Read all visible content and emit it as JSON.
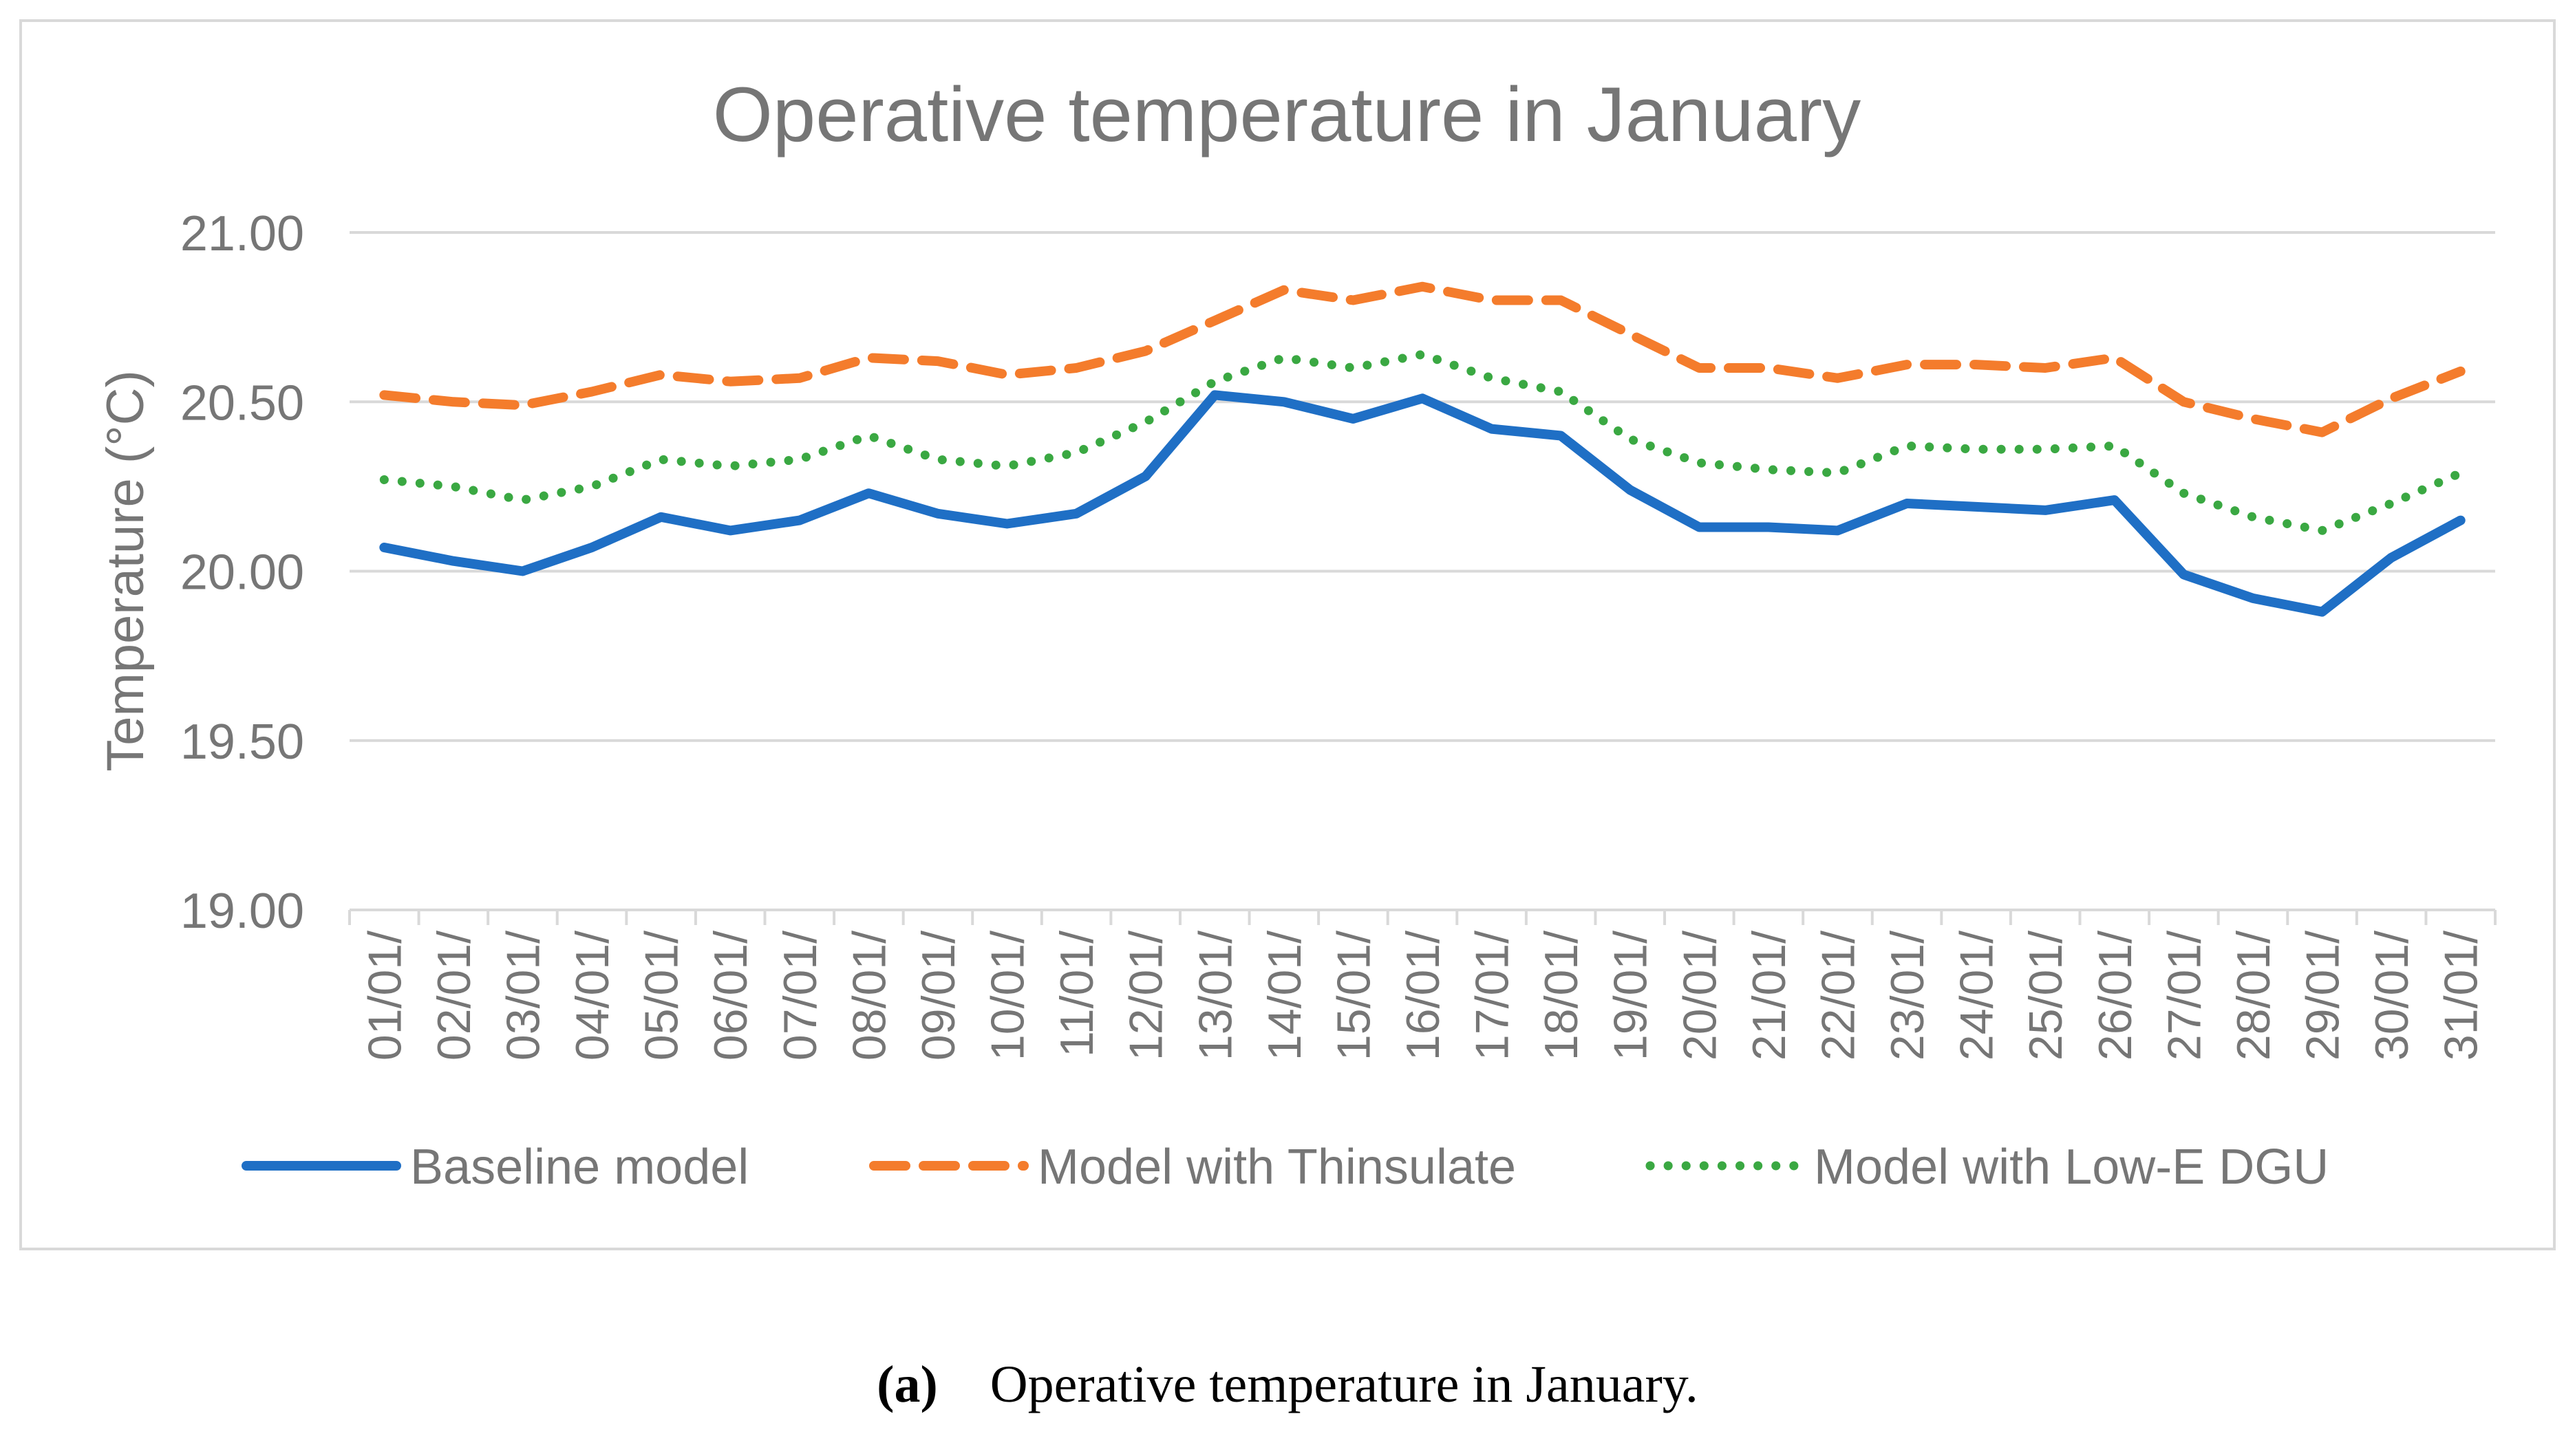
{
  "chart_data": {
    "type": "line",
    "title": "Operative temperature in January",
    "xlabel": "",
    "ylabel": "Temperature (°C)",
    "ylim": [
      19.0,
      21.0
    ],
    "yticks": [
      "19.00",
      "19.50",
      "20.00",
      "20.50",
      "21.00"
    ],
    "ytick_values": [
      19.0,
      19.5,
      20.0,
      20.5,
      21.0
    ],
    "grid": true,
    "legend_position": "bottom",
    "categories": [
      "01/01/",
      "02/01/",
      "03/01/",
      "04/01/",
      "05/01/",
      "06/01/",
      "07/01/",
      "08/01/",
      "09/01/",
      "10/01/",
      "11/01/",
      "12/01/",
      "13/01/",
      "14/01/",
      "15/01/",
      "16/01/",
      "17/01/",
      "18/01/",
      "19/01/",
      "20/01/",
      "21/01/",
      "22/01/",
      "23/01/",
      "24/01/",
      "25/01/",
      "26/01/",
      "27/01/",
      "28/01/",
      "29/01/",
      "30/01/",
      "31/01/"
    ],
    "series": [
      {
        "name": "Baseline model",
        "color": "#1f6fc5",
        "style": "solid",
        "values": [
          20.07,
          20.03,
          20.0,
          20.07,
          20.16,
          20.12,
          20.15,
          20.23,
          20.17,
          20.14,
          20.17,
          20.28,
          20.52,
          20.5,
          20.45,
          20.51,
          20.42,
          20.4,
          20.24,
          20.13,
          20.13,
          20.12,
          20.2,
          20.19,
          20.18,
          20.21,
          19.99,
          19.92,
          19.88,
          20.04,
          20.15
        ]
      },
      {
        "name": "Model with Thinsulate",
        "color": "#f47c2c",
        "style": "dashed",
        "values": [
          20.52,
          20.5,
          20.49,
          20.53,
          20.58,
          20.56,
          20.57,
          20.63,
          20.62,
          20.58,
          20.6,
          20.65,
          20.74,
          20.83,
          20.8,
          20.84,
          20.8,
          20.8,
          20.7,
          20.6,
          20.6,
          20.57,
          20.61,
          20.61,
          20.6,
          20.63,
          20.5,
          20.45,
          20.41,
          20.51,
          20.59
        ]
      },
      {
        "name": "Model with Low-E DGU",
        "color": "#3aa842",
        "style": "dotted",
        "values": [
          20.27,
          20.25,
          20.21,
          20.25,
          20.33,
          20.31,
          20.33,
          20.4,
          20.33,
          20.31,
          20.35,
          20.44,
          20.56,
          20.63,
          20.6,
          20.64,
          20.57,
          20.53,
          20.39,
          20.32,
          20.3,
          20.29,
          20.37,
          20.36,
          20.36,
          20.37,
          20.23,
          20.16,
          20.12,
          20.2,
          20.29
        ]
      }
    ]
  },
  "caption": {
    "tag": "(a)",
    "text": "Operative temperature in January."
  }
}
